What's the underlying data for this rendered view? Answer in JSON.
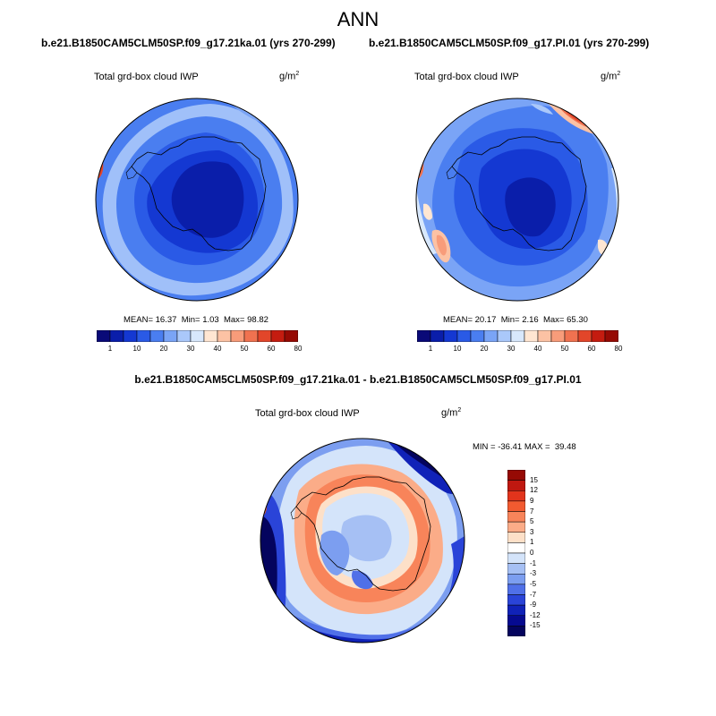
{
  "figure": {
    "title": "ANN"
  },
  "panels": {
    "left": {
      "case": "b.e21.B1850CAM5CLM50SP.f09_g17.21ka.01 (yrs 270-299)",
      "variable": "Total grd-box cloud IWP",
      "units": "g/m",
      "units_exp": "2",
      "mean_label": "MEAN=",
      "mean": "16.37",
      "min_label": "Min=",
      "min": "1.03",
      "max_label": "Max=",
      "max": "98.82"
    },
    "right": {
      "case": "b.e21.B1850CAM5CLM50SP.f09_g17.PI.01 (yrs 270-299)",
      "variable": "Total grd-box cloud IWP",
      "units": "g/m",
      "units_exp": "2",
      "mean_label": "MEAN=",
      "mean": "20.17",
      "min_label": "Min=",
      "min": "2.16",
      "max_label": "Max=",
      "max": "65.30"
    },
    "diff": {
      "case": "b.e21.B1850CAM5CLM50SP.f09_g17.21ka.01 - b.e21.B1850CAM5CLM50SP.f09_g17.PI.01",
      "variable": "Total grd-box cloud IWP",
      "units": "g/m",
      "units_exp": "2",
      "range_text": "MIN = -36.41 MAX =  39.48"
    }
  },
  "colorbars": {
    "absolute": {
      "colors": [
        "#0a0a78",
        "#0a1eaa",
        "#1438d2",
        "#2a5ae6",
        "#4a7ef0",
        "#7aa4f6",
        "#aac8fa",
        "#d8e8fc",
        "#ffe6d2",
        "#fcc2a4",
        "#f89c7a",
        "#f07250",
        "#e2462a",
        "#c41c10",
        "#960a04"
      ],
      "labels": [
        "1",
        "10",
        "20",
        "30",
        "40",
        "50",
        "60",
        "80"
      ]
    },
    "difference": {
      "colors": [
        "#960a04",
        "#c01810",
        "#e2341c",
        "#f25a30",
        "#f8845a",
        "#fbac88",
        "#fde0c8",
        "#ffffff",
        "#d4e4fa",
        "#a6c0f4",
        "#7c9ef0",
        "#5070e8",
        "#2a44d8",
        "#1022b8",
        "#060a90",
        "#04045e"
      ],
      "labels": [
        "15",
        "12",
        "9",
        "7",
        "5",
        "3",
        "1",
        "0",
        "-1",
        "-3",
        "-5",
        "-7",
        "-9",
        "-12",
        "-15"
      ]
    }
  }
}
